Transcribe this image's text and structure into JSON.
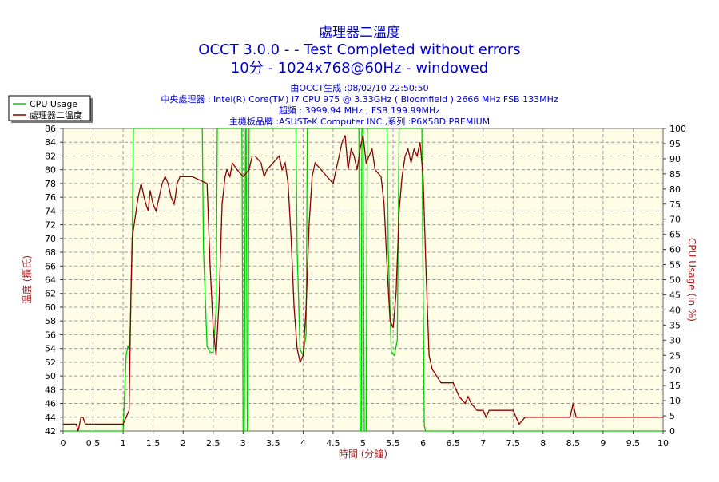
{
  "chart_data": {
    "type": "line",
    "title": "處理器二溫度",
    "subtitle_lines": [
      "OCCT 3.0.0 -  - Test Completed without errors",
      "10分 - 1024x768@60Hz - windowed"
    ],
    "info_lines": [
      "由OCCT生成 :08/02/10 22:50:50",
      "中央處理器 : Intel(R) Core(TM) i7 CPU 975 @ 3.33GHz ( Bloomfield ) 2666 MHz FSB 133MHz",
      "超頻 : 3999.94 MHz ; FSB 199.99MHz",
      "主機板品牌 :ASUSTeK Computer INC.,系列 :P6X58D PREMIUM"
    ],
    "xlabel": "時間 (分鐘)",
    "ylabel_left": "溫度 (攝氏)",
    "ylabel_right": "CPU Usage (in %)",
    "xlim": [
      0,
      10
    ],
    "ylim_left": [
      42,
      86
    ],
    "ylim_right": [
      0,
      100
    ],
    "x_ticks": [
      "0",
      "0.5",
      "1",
      "1.5",
      "2",
      "2.5",
      "3",
      "3.5",
      "4",
      "4.5",
      "5",
      "5.5",
      "6",
      "6.5",
      "7",
      "7.5",
      "8",
      "8.5",
      "9",
      "9.5",
      "10"
    ],
    "y_ticks_left": [
      "42",
      "44",
      "46",
      "48",
      "50",
      "52",
      "54",
      "56",
      "58",
      "60",
      "62",
      "64",
      "66",
      "68",
      "70",
      "72",
      "74",
      "76",
      "78",
      "80",
      "82",
      "84",
      "86"
    ],
    "y_ticks_right": [
      "0",
      "5",
      "10",
      "15",
      "20",
      "25",
      "30",
      "35",
      "40",
      "45",
      "50",
      "55",
      "60",
      "65",
      "70",
      "75",
      "80",
      "85",
      "90",
      "95",
      "100"
    ],
    "grid": true,
    "legend_position": "top-left",
    "series": [
      {
        "name": "CPU Usage",
        "color": "#00cc00",
        "axis": "right",
        "x": [
          0,
          1.0,
          1.02,
          1.05,
          1.08,
          1.1,
          1.12,
          1.15,
          1.17,
          2.32,
          2.34,
          2.4,
          2.45,
          2.5,
          2.55,
          2.57,
          2.98,
          3.0,
          3.02,
          3.04,
          3.05,
          3.07,
          3.08,
          3.1,
          3.12,
          3.88,
          3.9,
          3.95,
          4.0,
          4.05,
          4.07,
          4.93,
          4.95,
          4.97,
          4.98,
          5.0,
          5.02,
          5.05,
          5.07,
          5.4,
          5.42,
          5.47,
          5.52,
          5.57,
          5.6,
          5.98,
          6.0,
          6.02,
          6.04,
          10
        ],
        "y": [
          0,
          0,
          10,
          25,
          28,
          27,
          35,
          60,
          100,
          100,
          60,
          28,
          26,
          26,
          40,
          100,
          100,
          0,
          0,
          100,
          100,
          0,
          0,
          100,
          100,
          100,
          60,
          27,
          25,
          32,
          100,
          100,
          0,
          0,
          100,
          100,
          0,
          0,
          100,
          100,
          60,
          26,
          25,
          30,
          100,
          100,
          50,
          2,
          0,
          0
        ]
      },
      {
        "name": "處理器二溫度",
        "color": "#8b0000",
        "axis": "left",
        "x": [
          0,
          0.22,
          0.25,
          0.3,
          0.33,
          0.37,
          0.4,
          1.0,
          1.05,
          1.1,
          1.13,
          1.15,
          1.2,
          1.25,
          1.3,
          1.35,
          1.38,
          1.42,
          1.45,
          1.5,
          1.55,
          1.6,
          1.65,
          1.7,
          1.75,
          1.8,
          1.85,
          1.87,
          1.9,
          1.95,
          2.0,
          2.05,
          2.1,
          2.15,
          2.4,
          2.45,
          2.5,
          2.55,
          2.6,
          2.65,
          2.7,
          2.73,
          2.78,
          2.82,
          2.9,
          3.0,
          3.1,
          3.15,
          3.2,
          3.3,
          3.35,
          3.4,
          3.5,
          3.6,
          3.65,
          3.7,
          3.75,
          3.8,
          3.85,
          3.9,
          3.95,
          4.0,
          4.05,
          4.1,
          4.15,
          4.2,
          4.3,
          4.4,
          4.5,
          4.6,
          4.65,
          4.7,
          4.75,
          4.8,
          4.85,
          4.9,
          4.95,
          5.0,
          5.05,
          5.1,
          5.15,
          5.2,
          5.3,
          5.35,
          5.4,
          5.45,
          5.5,
          5.55,
          5.6,
          5.65,
          5.7,
          5.75,
          5.8,
          5.85,
          5.9,
          5.95,
          6.0,
          6.05,
          6.1,
          6.15,
          6.3,
          6.5,
          6.55,
          6.6,
          6.7,
          6.75,
          6.8,
          6.9,
          7.0,
          7.05,
          7.1,
          7.4,
          7.5,
          7.55,
          7.6,
          7.7,
          8.0,
          8.2,
          8.45,
          8.5,
          8.55,
          8.6,
          9.0,
          10
        ],
        "y": [
          43,
          43,
          42,
          44,
          44,
          43,
          43,
          43,
          44,
          45,
          62,
          70,
          73,
          76,
          78,
          76,
          75,
          74,
          77,
          75,
          74,
          76,
          78,
          79,
          78,
          76,
          75,
          76,
          78,
          79,
          79,
          79,
          79,
          79,
          78,
          66,
          57,
          53,
          61,
          75,
          79,
          80,
          79,
          81,
          80,
          79,
          80,
          82,
          82,
          81,
          79,
          80,
          81,
          82,
          80,
          81,
          78,
          70,
          60,
          54,
          52,
          53,
          60,
          72,
          79,
          81,
          80,
          79,
          78,
          82,
          84,
          85,
          80,
          83,
          82,
          80,
          83,
          85,
          81,
          82,
          83,
          80,
          79,
          75,
          66,
          58,
          57,
          62,
          74,
          79,
          82,
          83,
          81,
          83,
          82,
          84,
          79,
          65,
          53,
          51,
          49,
          49,
          48,
          47,
          46,
          47,
          46,
          45,
          45,
          44,
          45,
          45,
          45,
          44,
          43,
          44,
          44,
          44,
          44,
          46,
          44,
          44,
          44,
          44
        ]
      }
    ]
  }
}
